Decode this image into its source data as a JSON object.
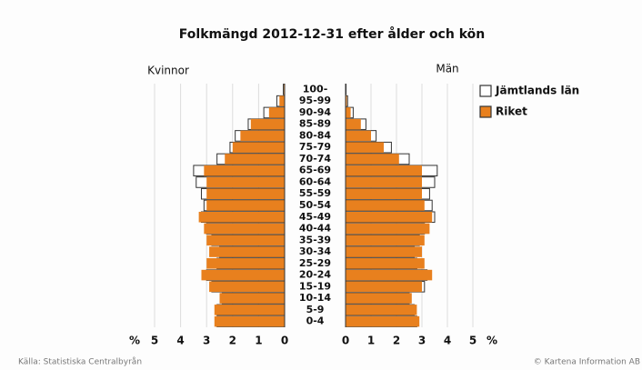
{
  "chart_data": {
    "type": "population_pyramid",
    "title": "Folkmängd 2012-12-31 efter ålder och kön",
    "left_label": "Kvinnor",
    "right_label": "Män",
    "unit_label": "%",
    "categories": [
      "0-4",
      "5-9",
      "10-14",
      "15-19",
      "20-24",
      "25-29",
      "30-34",
      "35-39",
      "40-44",
      "45-49",
      "50-54",
      "55-59",
      "60-64",
      "65-69",
      "70-74",
      "75-79",
      "80-84",
      "85-89",
      "90-94",
      "95-99",
      "100-"
    ],
    "series": [
      {
        "name": "Jämtlands län",
        "color": "#ffffff",
        "women": [
          2.6,
          2.6,
          2.4,
          2.8,
          3.0,
          2.6,
          2.5,
          2.8,
          3.0,
          3.2,
          3.1,
          3.2,
          3.4,
          3.5,
          2.6,
          2.1,
          1.9,
          1.4,
          0.8,
          0.3,
          0.05
        ],
        "men": [
          2.8,
          2.7,
          2.5,
          3.1,
          3.2,
          2.8,
          2.7,
          2.9,
          3.1,
          3.5,
          3.4,
          3.3,
          3.5,
          3.6,
          2.5,
          1.8,
          1.2,
          0.8,
          0.3,
          0.08,
          0.02
        ]
      },
      {
        "name": "Riket",
        "color": "#e8801e",
        "women": [
          2.7,
          2.7,
          2.5,
          2.9,
          3.2,
          3.0,
          2.9,
          3.0,
          3.1,
          3.3,
          3.0,
          3.0,
          3.0,
          3.1,
          2.3,
          2.0,
          1.7,
          1.3,
          0.6,
          0.2,
          0.03
        ],
        "men": [
          2.9,
          2.8,
          2.6,
          3.0,
          3.4,
          3.1,
          3.0,
          3.1,
          3.3,
          3.4,
          3.1,
          3.0,
          3.0,
          3.0,
          2.1,
          1.5,
          1.0,
          0.6,
          0.2,
          0.05,
          0.01
        ]
      }
    ],
    "xlim": [
      0,
      5
    ],
    "xticks": [
      0,
      1,
      2,
      3,
      4,
      5
    ],
    "grid": true,
    "source": "Källa: Statistiska Centralbyrån",
    "copyright": "© Kartena Information AB"
  }
}
